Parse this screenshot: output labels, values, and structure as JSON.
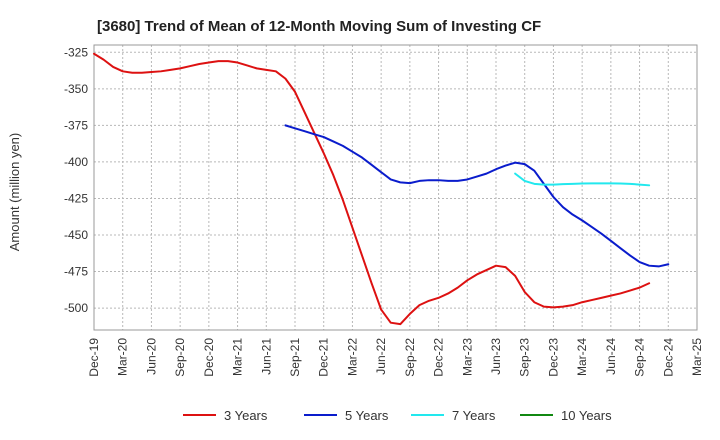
{
  "chart_data": {
    "type": "line",
    "title": "[3680]  Trend of Mean of 12-Month Moving Sum of Investing CF",
    "xlabel": "",
    "ylabel": "Amount (million yen)",
    "ylim": [
      -515,
      -320
    ],
    "yticks": [
      -325,
      -350,
      -375,
      -400,
      -425,
      -450,
      -475,
      -500
    ],
    "grid": true,
    "legend_position": "bottom",
    "x_tick_labels": [
      "Dec-19",
      "Mar-20",
      "Jun-20",
      "Sep-20",
      "Dec-20",
      "Mar-21",
      "Jun-21",
      "Sep-21",
      "Dec-21",
      "Mar-22",
      "Jun-22",
      "Sep-22",
      "Dec-22",
      "Mar-23",
      "Jun-23",
      "Sep-23",
      "Dec-23",
      "Mar-24",
      "Jun-24",
      "Sep-24",
      "Dec-24",
      "Mar-25"
    ],
    "series": [
      {
        "name": "3 Years",
        "color": "#dd1111",
        "start_index": 0,
        "values": [
          -326,
          -330,
          -335,
          -338,
          -339,
          -339,
          -338.5,
          -338,
          -337,
          -336,
          -334.5,
          -333,
          -332,
          -331,
          -331,
          -332,
          -334,
          -336,
          -337,
          -338,
          -343,
          -352,
          -366,
          -380,
          -394,
          -409,
          -426,
          -445,
          -464,
          -483,
          -501,
          -510,
          -511,
          -504,
          -498,
          -495,
          -493,
          -490,
          -486,
          -481,
          -477,
          -474,
          -471,
          -472,
          -478,
          -489,
          -496,
          -499,
          -499.5,
          -499,
          -498,
          -496,
          -494.5,
          -493,
          -491.5,
          -490,
          -488,
          -486,
          -483
        ]
      },
      {
        "name": "5 Years",
        "color": "#0a1ccc",
        "start_index": 20,
        "values": [
          -375,
          -377,
          -379,
          -381,
          -383,
          -386,
          -389,
          -393,
          -397,
          -402,
          -407,
          -412,
          -414,
          -414.5,
          -413,
          -412.5,
          -412.5,
          -413,
          -413,
          -412,
          -410,
          -408,
          -405,
          -402.5,
          -400.5,
          -401.5,
          -406,
          -415,
          -424,
          -431,
          -436,
          -440,
          -444.5,
          -449,
          -454,
          -459,
          -464,
          -468.5,
          -471,
          -471.5,
          -470
        ]
      },
      {
        "name": "7 Years",
        "color": "#22e8ee",
        "start_index": 44,
        "values": [
          -408,
          -413,
          -415,
          -415.5,
          -415.5,
          -415.2,
          -415,
          -414.8,
          -414.7,
          -414.7,
          -414.7,
          -414.8,
          -415,
          -415.5,
          -416
        ]
      },
      {
        "name": "10 Years",
        "color": "#118811",
        "start_index": 0,
        "values": []
      }
    ]
  }
}
